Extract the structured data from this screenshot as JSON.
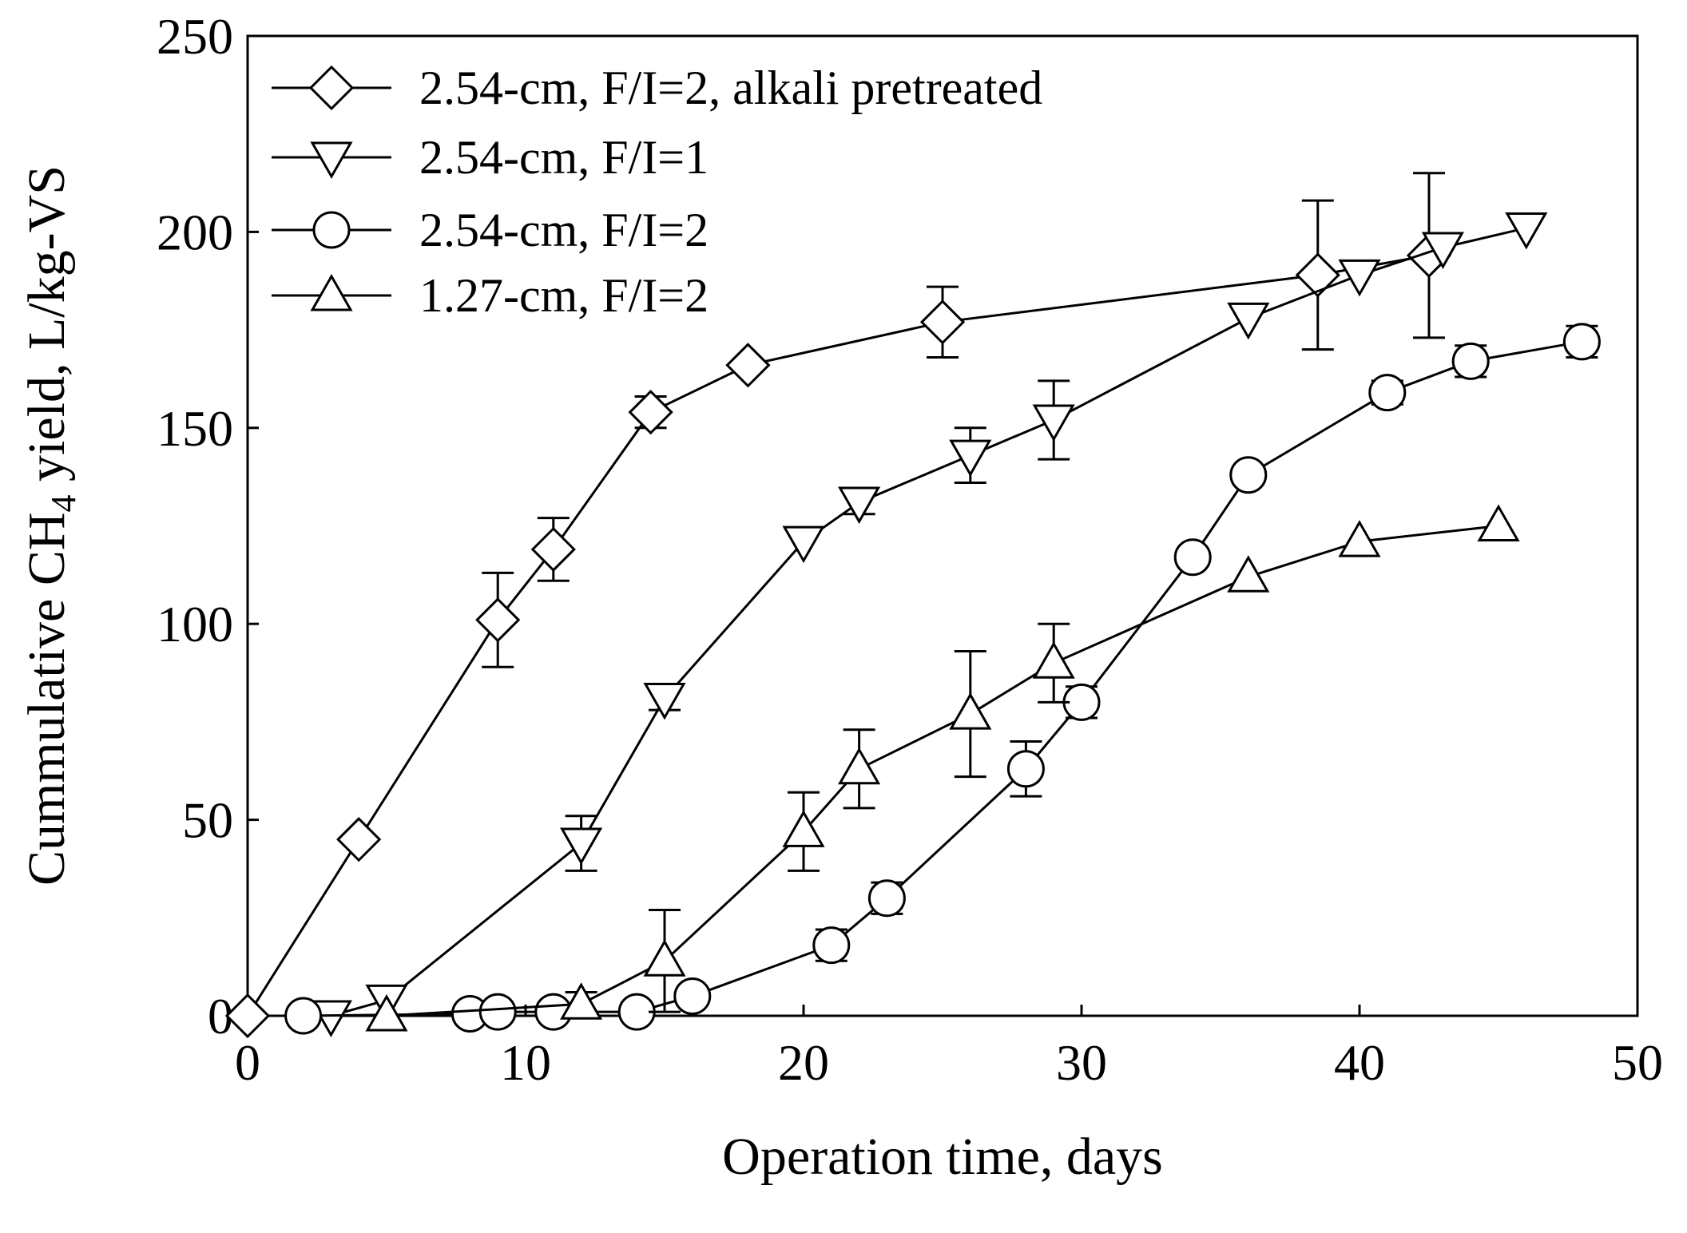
{
  "chart_data": {
    "type": "line",
    "xlabel": "Operation time, days",
    "ylabel": {
      "pre": "Cummulative CH",
      "sub": "4",
      "post": " yield, L/kg-VS"
    },
    "xlim": [
      0,
      50
    ],
    "ylim": [
      0,
      250
    ],
    "xticks": [
      "0",
      "10",
      "20",
      "30",
      "40",
      "50"
    ],
    "yticks": [
      "0",
      "50",
      "100",
      "150",
      "200",
      "250"
    ],
    "grid": false,
    "legend_position": "top-left",
    "series": [
      {
        "name": "2.54-cm, F/I=2, alkali pretreated",
        "marker": "diamond",
        "points": [
          {
            "x": 0,
            "y": 0
          },
          {
            "x": 4,
            "y": 45
          },
          {
            "x": 9,
            "y": 101,
            "err": 12
          },
          {
            "x": 11,
            "y": 119,
            "err": 8
          },
          {
            "x": 14.5,
            "y": 154,
            "err": 4
          },
          {
            "x": 18,
            "y": 166
          },
          {
            "x": 25,
            "y": 177,
            "err": 9
          },
          {
            "x": 38.5,
            "y": 189,
            "err": 19
          },
          {
            "x": 42.5,
            "y": 194,
            "err": 21
          }
        ]
      },
      {
        "name": "2.54-cm, F/I=1",
        "marker": "triangle-down",
        "points": [
          {
            "x": 3,
            "y": 0
          },
          {
            "x": 5,
            "y": 4
          },
          {
            "x": 12,
            "y": 44,
            "err": 7
          },
          {
            "x": 15,
            "y": 81,
            "err": 3
          },
          {
            "x": 20,
            "y": 121
          },
          {
            "x": 22,
            "y": 131,
            "err": 3
          },
          {
            "x": 26,
            "y": 143,
            "err": 7
          },
          {
            "x": 29,
            "y": 152,
            "err": 10
          },
          {
            "x": 36,
            "y": 178
          },
          {
            "x": 40,
            "y": 189
          },
          {
            "x": 43,
            "y": 196
          },
          {
            "x": 46,
            "y": 201
          }
        ]
      },
      {
        "name": "2.54-cm, F/I=2",
        "marker": "circle",
        "points": [
          {
            "x": 2,
            "y": 0
          },
          {
            "x": 8,
            "y": 0.5
          },
          {
            "x": 9,
            "y": 1
          },
          {
            "x": 11,
            "y": 1
          },
          {
            "x": 14,
            "y": 1
          },
          {
            "x": 16,
            "y": 5
          },
          {
            "x": 21,
            "y": 18,
            "err": 4
          },
          {
            "x": 23,
            "y": 30,
            "err": 4
          },
          {
            "x": 28,
            "y": 63,
            "err": 7
          },
          {
            "x": 30,
            "y": 80,
            "err": 4
          },
          {
            "x": 34,
            "y": 117
          },
          {
            "x": 36,
            "y": 138
          },
          {
            "x": 41,
            "y": 159,
            "err": 3
          },
          {
            "x": 44,
            "y": 167,
            "err": 4
          },
          {
            "x": 48,
            "y": 172,
            "err": 4
          }
        ]
      },
      {
        "name": "1.27-cm, F/I=2",
        "marker": "triangle-up",
        "points": [
          {
            "x": 5,
            "y": 0
          },
          {
            "x": 12,
            "y": 3,
            "err": 3
          },
          {
            "x": 15,
            "y": 14,
            "err": 13
          },
          {
            "x": 20,
            "y": 47,
            "err": 10
          },
          {
            "x": 22,
            "y": 63,
            "err": 10
          },
          {
            "x": 26,
            "y": 77,
            "err": 16
          },
          {
            "x": 29,
            "y": 90,
            "err": 10
          },
          {
            "x": 36,
            "y": 112
          },
          {
            "x": 40,
            "y": 121
          },
          {
            "x": 45,
            "y": 125
          }
        ]
      }
    ]
  }
}
